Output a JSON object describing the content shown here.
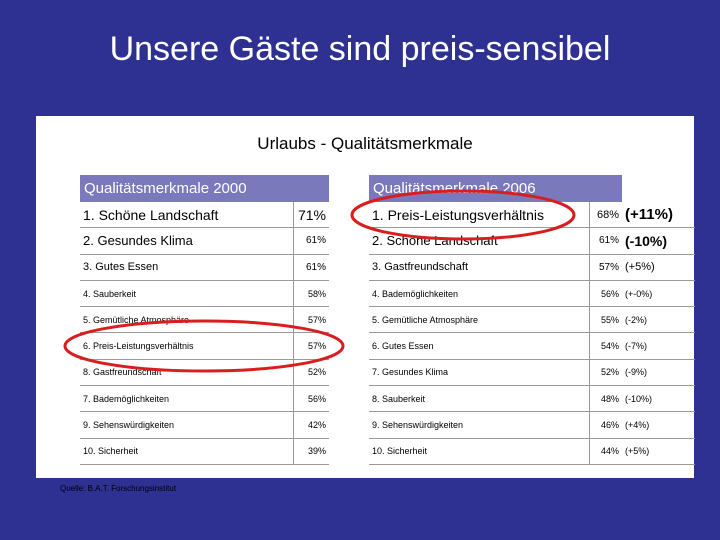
{
  "slide": {
    "title": "Unsere Gäste sind preis-sensibel",
    "panel_title": "Urlaubs - Qualitätsmerkmale",
    "source": "Quelle: B.A.T. Forschungsinstitut"
  },
  "table_2000": {
    "header": "Qualitätsmerkmale 2000",
    "rows": [
      {
        "label": "1. Schöne Landschaft",
        "value": "71%"
      },
      {
        "label": "2. Gesundes Klima",
        "value": "61%"
      },
      {
        "label": "3. Gutes Essen",
        "value": "61%"
      },
      {
        "label": "4. Sauberkeit",
        "value": "58%"
      },
      {
        "label": "5. Gemütliche Atmosphäre",
        "value": "57%"
      },
      {
        "label": "6. Preis-Leistungsverhältnis",
        "value": "57%"
      },
      {
        "label": "8. Gastfreundschaft",
        "value": "52%"
      },
      {
        "label": "7. Bademöglichkeiten",
        "value": "56%"
      },
      {
        "label": "9. Sehenswürdigkeiten",
        "value": "42%"
      },
      {
        "label": "10. Sicherheit",
        "value": "39%"
      }
    ]
  },
  "table_2006": {
    "header": "Qualitätsmerkmale 2006",
    "rows": [
      {
        "label": "1. Preis-Leistungsverhältnis",
        "value": "68%",
        "change": "(+11%)"
      },
      {
        "label": "2. Schöne Landschaft",
        "value": "61%",
        "change": "(-10%)"
      },
      {
        "label": "3. Gastfreundschaft",
        "value": "57%",
        "change": "(+5%)"
      },
      {
        "label": "4. Bademöglichkeiten",
        "value": "56%",
        "change": "(+-0%)"
      },
      {
        "label": "5. Gemütliche Atmosphäre",
        "value": "55%",
        "change": "(-2%)"
      },
      {
        "label": "6. Gutes Essen",
        "value": "54%",
        "change": "(-7%)"
      },
      {
        "label": "7. Gesundes Klima",
        "value": "52%",
        "change": "(-9%)"
      },
      {
        "label": "8. Sauberkeit",
        "value": "48%",
        "change": "(-10%)"
      },
      {
        "label": "9. Sehenswürdigkeiten",
        "value": "46%",
        "change": "(+4%)"
      },
      {
        "label": "10. Sicherheit",
        "value": "44%",
        "change": "(+5%)"
      }
    ]
  },
  "highlight_color": "#d81e1e",
  "header_color": "#7a79bb",
  "background_color": "#2e3192"
}
